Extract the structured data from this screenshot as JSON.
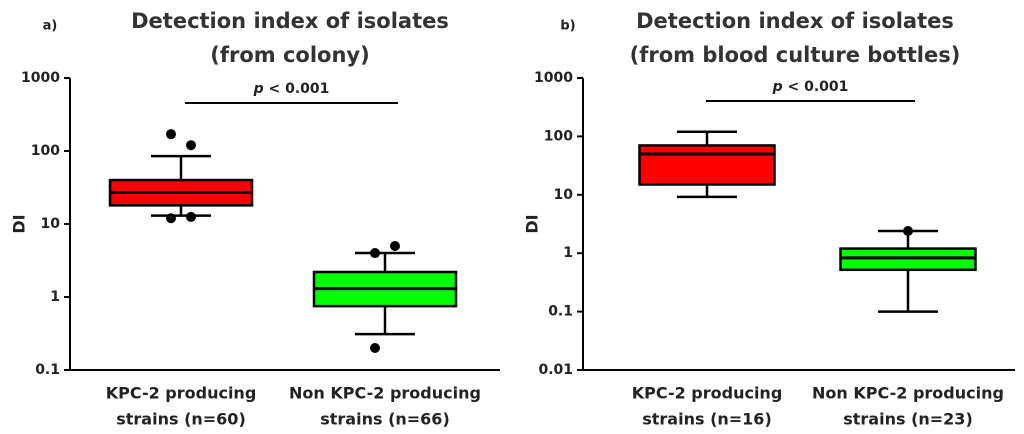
{
  "chart_data": [
    {
      "type": "box",
      "panel_label": "a)",
      "title": [
        "Detection index of isolates",
        "(from colony)"
      ],
      "ylabel": "DI",
      "annotation": {
        "italic": "p",
        "text": "< 0.001"
      },
      "categories": [
        [
          "KPC-2 producing",
          "strains (n=60)"
        ],
        [
          "Non KPC-2 producing",
          "strains (n=66)"
        ]
      ],
      "boxes": [
        {
          "color": "#ff0000",
          "whisker_low": 13,
          "q1": 18,
          "median": 27,
          "q3": 40,
          "whisker_high": 85,
          "outliers": [
            170,
            120,
            12,
            12.5
          ]
        },
        {
          "color": "#00ff00",
          "whisker_low": 0.31,
          "q1": 0.75,
          "median": 1.3,
          "q3": 2.2,
          "whisker_high": 4,
          "outliers": [
            4,
            5,
            0.2
          ]
        }
      ],
      "log_scale": true,
      "ylim": [
        0.1,
        1000
      ],
      "yticks": [
        0.1,
        1,
        10,
        100,
        1000
      ]
    },
    {
      "type": "box",
      "panel_label": "b)",
      "title": [
        "Detection index of isolates",
        "(from blood culture bottles)"
      ],
      "ylabel": "DI",
      "annotation": {
        "italic": "p",
        "text": "< 0.001"
      },
      "categories": [
        [
          "KPC-2 producing",
          "strains (n=16)"
        ],
        [
          "Non KPC-2 producing",
          "strains (n=23)"
        ]
      ],
      "boxes": [
        {
          "color": "#ff0000",
          "whisker_low": 9.2,
          "q1": 15,
          "median": 50,
          "q3": 70,
          "whisker_high": 120,
          "outliers": []
        },
        {
          "color": "#00ff00",
          "whisker_low": 0.1,
          "q1": 0.52,
          "median": 0.83,
          "q3": 1.2,
          "whisker_high": 2.4,
          "outliers": [
            2.4
          ]
        }
      ],
      "log_scale": true,
      "ylim": [
        0.01,
        1000
      ],
      "yticks": [
        0.01,
        0.1,
        1,
        10,
        100,
        1000
      ]
    }
  ]
}
